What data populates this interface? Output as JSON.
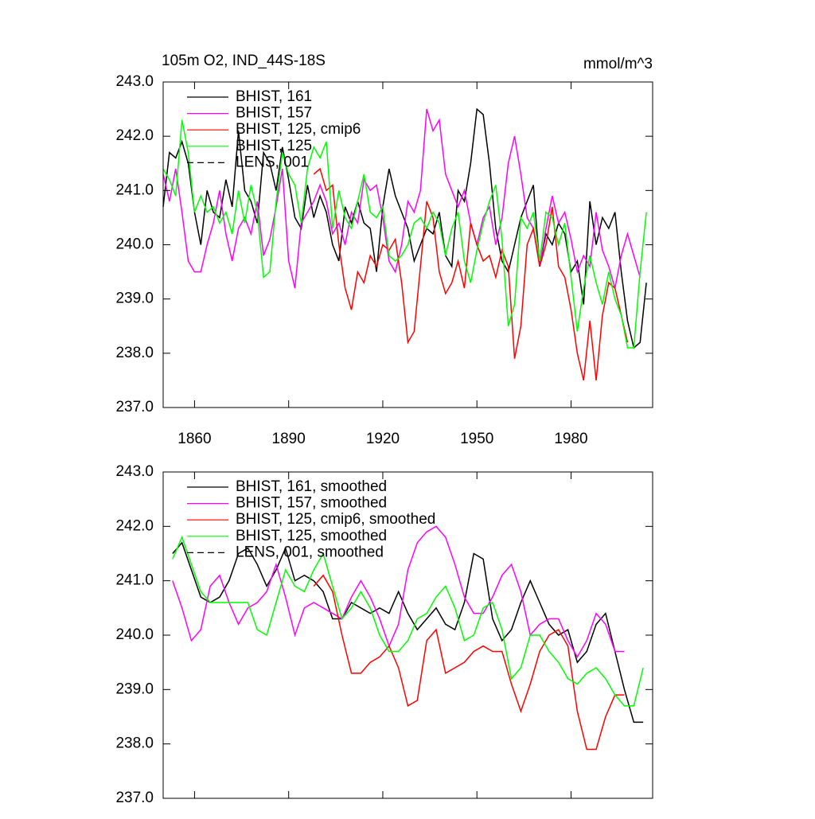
{
  "chart_data": [
    {
      "type": "line",
      "title": "105m O2, IND_44S-18S",
      "units_label": "mmol/m^3",
      "xlim": [
        1850,
        2006
      ],
      "ylim": [
        237,
        243
      ],
      "xticks": [
        1860,
        1890,
        1920,
        1950,
        1980
      ],
      "x_tick_labels": true,
      "yticks": [
        {
          "value": 237,
          "label": "237.0"
        },
        {
          "value": 238,
          "label": "238.0"
        },
        {
          "value": 239,
          "label": "239.0"
        },
        {
          "value": 240,
          "label": "240.0"
        },
        {
          "value": 241,
          "label": "241.0"
        },
        {
          "value": 242,
          "label": "242.0"
        },
        {
          "value": 243,
          "label": "243.0"
        }
      ],
      "x": [
        1850,
        1852,
        1854,
        1856,
        1858,
        1860,
        1862,
        1864,
        1866,
        1868,
        1870,
        1872,
        1874,
        1876,
        1878,
        1880,
        1882,
        1884,
        1886,
        1888,
        1890,
        1892,
        1894,
        1896,
        1898,
        1900,
        1902,
        1904,
        1906,
        1908,
        1910,
        1912,
        1914,
        1916,
        1918,
        1920,
        1922,
        1924,
        1926,
        1928,
        1930,
        1932,
        1934,
        1936,
        1938,
        1940,
        1942,
        1944,
        1946,
        1948,
        1950,
        1952,
        1954,
        1956,
        1958,
        1960,
        1962,
        1964,
        1966,
        1968,
        1970,
        1972,
        1974,
        1976,
        1978,
        1980,
        1982,
        1984,
        1986,
        1988,
        1990,
        1992,
        1994,
        1996,
        1998,
        2000,
        2002,
        2004
      ],
      "series": [
        {
          "name": "BHIST, 161",
          "color": "#000000",
          "dash": false,
          "values": [
            240.7,
            241.7,
            241.6,
            241.9,
            241.5,
            240.6,
            240.0,
            241.0,
            240.6,
            240.5,
            241.2,
            240.7,
            242.1,
            241.0,
            240.8,
            240.4,
            241.7,
            241.5,
            241.0,
            241.8,
            241.2,
            240.5,
            240.3,
            241.1,
            240.5,
            240.9,
            240.6,
            240.0,
            239.7,
            240.7,
            240.4,
            240.8,
            240.4,
            240.3,
            239.5,
            240.7,
            241.4,
            240.9,
            240.6,
            240.3,
            239.7,
            240.0,
            240.3,
            240.2,
            240.6,
            239.8,
            239.6,
            241.0,
            240.8,
            241.5,
            242.5,
            242.4,
            241.5,
            240.3,
            239.7,
            239.5,
            240.0,
            240.5,
            240.8,
            241.1,
            239.6,
            240.2,
            240.0,
            240.4,
            240.2,
            239.5,
            239.7,
            238.9,
            240.8,
            240.0,
            240.5,
            240.3,
            240.6,
            239.5,
            238.6,
            238.1,
            238.2,
            239.3
          ]
        },
        {
          "name": "BHIST, 157",
          "color": "#ff00ff",
          "dash": false,
          "values": [
            241.3,
            240.8,
            241.4,
            240.6,
            239.7,
            239.5,
            239.5,
            240.0,
            240.4,
            241.0,
            240.2,
            239.7,
            240.3,
            240.5,
            240.2,
            240.8,
            239.8,
            240.1,
            240.7,
            241.4,
            239.7,
            239.2,
            240.4,
            240.6,
            240.8,
            241.1,
            240.8,
            240.2,
            240.4,
            240.0,
            240.6,
            240.4,
            241.2,
            241.0,
            241.1,
            240.5,
            239.7,
            239.5,
            240.0,
            240.8,
            240.6,
            241.0,
            242.5,
            242.1,
            242.3,
            241.3,
            241.0,
            240.7,
            241.0,
            240.4,
            240.0,
            240.5,
            240.7,
            240.0,
            240.5,
            241.5,
            242.0,
            241.3,
            240.5,
            240.3,
            239.6,
            240.3,
            240.9,
            240.4,
            240.6,
            240.1,
            239.5,
            239.8,
            239.6,
            240.6,
            239.9,
            239.6,
            239.2,
            239.8,
            240.2,
            239.8,
            239.4,
            null
          ]
        },
        {
          "name": "BHIST, 125, cmip6",
          "color": "#ff0000",
          "dash": false,
          "values": [
            null,
            null,
            null,
            null,
            null,
            null,
            null,
            null,
            null,
            null,
            null,
            null,
            null,
            null,
            null,
            null,
            null,
            null,
            null,
            null,
            null,
            null,
            null,
            null,
            241.3,
            241.4,
            241.0,
            241.1,
            240.0,
            239.2,
            238.8,
            239.5,
            239.3,
            239.8,
            239.6,
            240.0,
            239.9,
            240.1,
            239.3,
            238.2,
            238.4,
            239.6,
            240.8,
            240.5,
            239.5,
            239.1,
            239.3,
            239.7,
            239.2,
            240.4,
            240.0,
            239.7,
            239.8,
            239.4,
            239.9,
            239.6,
            237.9,
            238.5,
            240.0,
            240.3,
            239.6,
            240.0,
            240.7,
            239.6,
            239.4,
            238.8,
            238.0,
            237.5,
            238.6,
            237.5,
            238.7,
            239.3,
            239.2,
            238.7,
            238.2,
            null,
            null,
            null
          ]
        },
        {
          "name": "BHIST, 125",
          "color": "#00ff00",
          "dash": false,
          "values": [
            241.4,
            241.2,
            240.9,
            242.3,
            241.7,
            240.6,
            240.9,
            240.6,
            240.7,
            240.4,
            240.6,
            240.2,
            241.0,
            240.4,
            241.1,
            240.6,
            239.4,
            239.5,
            240.8,
            241.7,
            241.3,
            241.1,
            240.4,
            241.4,
            241.8,
            241.6,
            241.9,
            240.3,
            241.0,
            240.5,
            240.3,
            240.8,
            241.3,
            240.6,
            240.5,
            240.7,
            239.8,
            239.7,
            239.8,
            240.0,
            240.4,
            240.5,
            240.3,
            240.6,
            240.4,
            239.8,
            240.3,
            240.6,
            239.7,
            239.3,
            239.9,
            240.4,
            240.8,
            241.1,
            240.1,
            238.5,
            238.9,
            240.5,
            240.3,
            240.6,
            239.7,
            240.6,
            240.5,
            240.0,
            240.4,
            239.4,
            238.4,
            239.2,
            239.8,
            239.3,
            238.9,
            239.5,
            239.0,
            238.7,
            238.1,
            238.1,
            239.5,
            240.6
          ]
        },
        {
          "name": "LENS, 001",
          "color": "#000000",
          "dash": true
        }
      ]
    },
    {
      "type": "line",
      "xlim": [
        1850,
        2006
      ],
      "ylim": [
        237,
        243
      ],
      "xticks": [
        1860,
        1890,
        1920,
        1950,
        1980
      ],
      "x_tick_labels": false,
      "yticks": [
        {
          "value": 237,
          "label": "237.0"
        },
        {
          "value": 238,
          "label": "238.0"
        },
        {
          "value": 239,
          "label": "239.0"
        },
        {
          "value": 240,
          "label": "240.0"
        },
        {
          "value": 241,
          "label": "241.0"
        },
        {
          "value": 242,
          "label": "242.0"
        },
        {
          "value": 243,
          "label": "243.0"
        }
      ],
      "x": [
        1853,
        1856,
        1859,
        1862,
        1865,
        1868,
        1871,
        1874,
        1877,
        1880,
        1883,
        1886,
        1889,
        1892,
        1895,
        1898,
        1901,
        1904,
        1907,
        1910,
        1913,
        1916,
        1919,
        1922,
        1925,
        1928,
        1931,
        1934,
        1937,
        1940,
        1943,
        1946,
        1949,
        1952,
        1955,
        1958,
        1961,
        1964,
        1967,
        1970,
        1973,
        1976,
        1979,
        1982,
        1985,
        1988,
        1991,
        1994,
        1997,
        2000,
        2003
      ],
      "series": [
        {
          "name": "BHIST, 161, smoothed",
          "color": "#000000",
          "dash": false,
          "values": [
            241.5,
            241.7,
            241.2,
            240.7,
            240.6,
            240.7,
            241.0,
            241.5,
            241.6,
            241.3,
            240.9,
            241.2,
            241.6,
            241.0,
            241.1,
            241.0,
            240.8,
            240.3,
            240.3,
            240.6,
            240.5,
            240.4,
            240.5,
            240.4,
            240.8,
            240.4,
            240.1,
            240.3,
            240.5,
            240.2,
            240.1,
            240.6,
            241.5,
            241.4,
            240.3,
            239.9,
            240.1,
            240.6,
            241.0,
            240.6,
            240.2,
            240.0,
            240.1,
            239.5,
            239.7,
            240.2,
            240.4,
            239.7,
            239.0,
            238.4,
            238.4
          ]
        },
        {
          "name": "BHIST, 157, smoothed",
          "color": "#ff00ff",
          "dash": false,
          "values": [
            241.0,
            240.5,
            239.9,
            240.1,
            240.9,
            241.1,
            240.6,
            240.2,
            240.5,
            240.6,
            240.8,
            241.3,
            240.7,
            240.0,
            240.5,
            240.6,
            240.5,
            240.4,
            240.3,
            240.7,
            241.0,
            240.7,
            240.3,
            239.8,
            240.2,
            241.2,
            241.7,
            241.9,
            242.0,
            241.8,
            241.3,
            240.7,
            240.4,
            240.4,
            240.7,
            241.1,
            241.3,
            240.8,
            240.0,
            240.2,
            240.3,
            240.3,
            239.9,
            239.6,
            239.9,
            240.4,
            240.2,
            239.7,
            239.7,
            null,
            null
          ]
        },
        {
          "name": "BHIST, 125, cmip6, smoothed",
          "color": "#ff0000",
          "dash": false,
          "values": [
            null,
            null,
            null,
            null,
            null,
            null,
            null,
            null,
            null,
            null,
            null,
            null,
            null,
            null,
            null,
            240.9,
            241.1,
            240.8,
            240.0,
            239.3,
            239.3,
            239.5,
            239.6,
            239.8,
            239.4,
            238.7,
            238.8,
            239.9,
            240.1,
            239.3,
            239.4,
            239.5,
            239.7,
            239.8,
            239.7,
            239.7,
            239.1,
            238.6,
            239.1,
            239.7,
            240.0,
            240.1,
            239.8,
            238.6,
            237.9,
            237.9,
            238.5,
            238.9,
            238.9,
            null,
            null
          ]
        },
        {
          "name": "BHIST, 125, smoothed",
          "color": "#00ff00",
          "dash": false,
          "values": [
            241.4,
            241.8,
            241.3,
            240.8,
            240.6,
            240.6,
            240.6,
            240.6,
            240.6,
            240.1,
            240.0,
            240.6,
            241.2,
            240.9,
            240.8,
            241.2,
            241.5,
            240.9,
            240.3,
            240.5,
            240.8,
            240.5,
            240.0,
            239.7,
            239.7,
            239.9,
            240.3,
            240.4,
            240.7,
            240.9,
            240.5,
            239.9,
            240.0,
            240.5,
            240.6,
            240.1,
            239.2,
            239.4,
            240.0,
            240.0,
            239.7,
            239.5,
            239.2,
            239.1,
            239.3,
            239.4,
            239.2,
            238.9,
            238.7,
            238.7,
            239.4
          ]
        },
        {
          "name": "LENS, 001, smoothed",
          "color": "#000000",
          "dash": true
        }
      ]
    }
  ]
}
